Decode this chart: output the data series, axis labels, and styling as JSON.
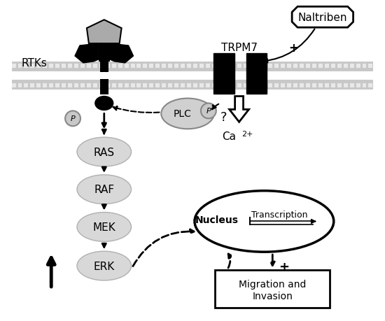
{
  "bg_color": "#ffffff",
  "rtks_label": "RTKs",
  "trpm7_label": "TRPM7",
  "naltriben_label": "Naltriben",
  "plc_label": "PLC",
  "ca2_label": "Ca",
  "ca2_sup": "2+",
  "ras_label": "RAS",
  "raf_label": "RAF",
  "mek_label": "MEK",
  "erk_label": "ERK",
  "nucleus_label": "Nucleus",
  "transcription_label": "Transcription",
  "migration_label1": "Migration and",
  "migration_label2": "Invasion",
  "p_label": "P",
  "ellipse_color": "#d8d8d8",
  "ellipse_edge": "#b0b0b0",
  "black": "#000000",
  "white": "#ffffff",
  "gray_ligand": "#999999",
  "gray_p": "#c0c0c0",
  "mem_gray": "#bbbbbb",
  "mem_stripe": "#dddddd"
}
